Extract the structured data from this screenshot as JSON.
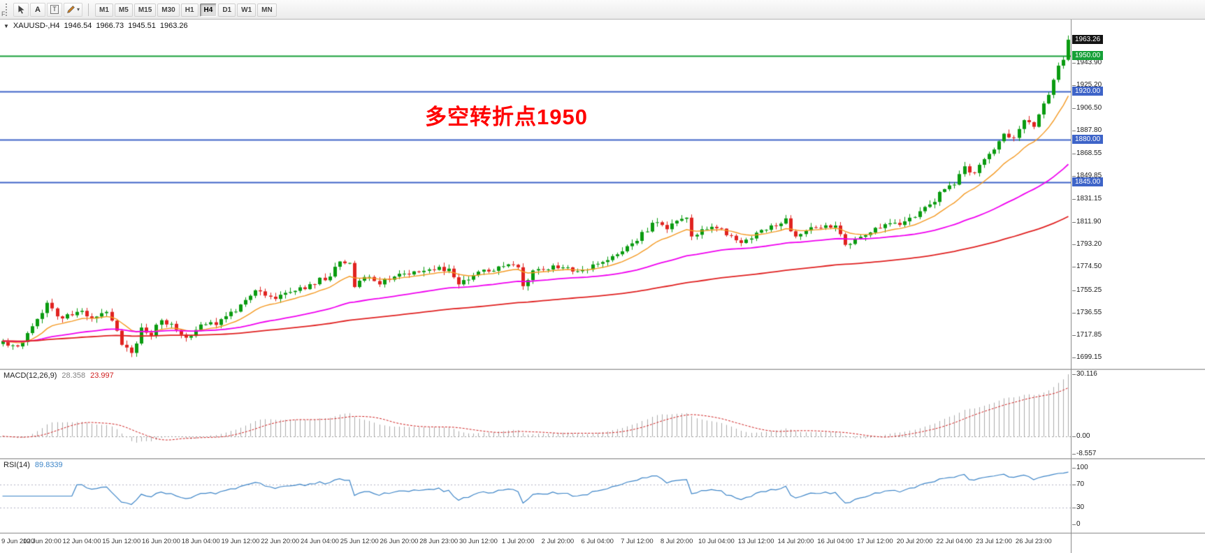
{
  "toolbar": {
    "partial_label": "F",
    "icons": [
      {
        "name": "cursor-icon"
      },
      {
        "name": "text-label-icon",
        "glyph": "A"
      },
      {
        "name": "text-box-icon",
        "glyph": "T"
      },
      {
        "name": "pencil-icon"
      },
      {
        "name": "chevron-down-icon",
        "glyph": "▾"
      }
    ],
    "timeframes": [
      {
        "label": "M1",
        "active": false
      },
      {
        "label": "M5",
        "active": false
      },
      {
        "label": "M15",
        "active": false
      },
      {
        "label": "M30",
        "active": false
      },
      {
        "label": "H1",
        "active": false
      },
      {
        "label": "H4",
        "active": true
      },
      {
        "label": "D1",
        "active": false
      },
      {
        "label": "W1",
        "active": false
      },
      {
        "label": "MN",
        "active": false
      }
    ]
  },
  "quote_header": {
    "collapse_glyph": "▼",
    "symbol_display": "XAUUSD-,H4",
    "open": "1946.54",
    "high": "1966.73",
    "low": "1945.51",
    "close": "1963.26"
  },
  "annotation": {
    "text": "多空转折点1950",
    "color": "#ff0000"
  },
  "main_chart": {
    "price_axis_ticks": [
      "1943.90",
      "1925.20",
      "1906.50",
      "1887.80",
      "1868.55",
      "1849.85",
      "1831.15",
      "1811.90",
      "1793.20",
      "1774.50",
      "1755.25",
      "1736.55",
      "1717.85",
      "1699.15"
    ],
    "badges": [
      {
        "value": "1963.26",
        "bg": "#141414",
        "type": "current-price"
      },
      {
        "value": "1950.00",
        "bg": "#16a038",
        "type": "level"
      },
      {
        "value": "1920.00",
        "bg": "#3e64c8",
        "type": "level"
      },
      {
        "value": "1880.00",
        "bg": "#3e64c8",
        "type": "level"
      },
      {
        "value": "1845.00",
        "bg": "#3e64c8",
        "type": "level"
      }
    ],
    "levels": [
      {
        "price": 1950,
        "color": "#16a038"
      },
      {
        "price": 1920,
        "color": "#3e64c8"
      },
      {
        "price": 1880,
        "color": "#3e64c8"
      },
      {
        "price": 1845,
        "color": "#3e64c8"
      }
    ],
    "up_color": "#0a9b10",
    "down_color": "#e02320",
    "price_range": {
      "top": 1980,
      "bottom": 1690
    }
  },
  "macd": {
    "title": "MACD(12,26,9)",
    "value_main": "28.358",
    "value_signal": "23.997",
    "axis_max": "30.116",
    "axis_zero": "0.00",
    "axis_min": "-8.557",
    "histogram_color": "#ababab",
    "signal_color": "#d02020"
  },
  "rsi": {
    "title": "RSI(14)",
    "value": "89.8339",
    "line_color": "#3d85c8",
    "levels": [
      70,
      30
    ],
    "axis_labels": [
      "100",
      "70",
      "30",
      "0"
    ]
  },
  "time_axis": {
    "labels": [
      "9 Jun 2020",
      "10 Jun 20:00",
      "12 Jun 04:00",
      "15 Jun 12:00",
      "16 Jun 20:00",
      "18 Jun 04:00",
      "19 Jun 12:00",
      "22 Jun 20:00",
      "24 Jun 04:00",
      "25 Jun 12:00",
      "26 Jun 20:00",
      "28 Jun 23:00",
      "30 Jun 12:00",
      "1 Jul 20:00",
      "2 Jul 20:00",
      "6 Jul 04:00",
      "7 Jul 12:00",
      "8 Jul 20:00",
      "10 Jul 04:00",
      "13 Jul 12:00",
      "14 Jul 20:00",
      "16 Jul 04:00",
      "17 Jul 12:00",
      "20 Jul 20:00",
      "22 Jul 04:00",
      "23 Jul 12:00",
      "26 Jul 23:00"
    ]
  },
  "chart_data": {
    "type": "candlestick",
    "symbol": "XAUUSD-",
    "timeframe": "H4",
    "candle_count": 216,
    "label_every_n_candles": 8,
    "last_candle": {
      "open": 1946.54,
      "high": 1966.73,
      "low": 1945.51,
      "close": 1963.26
    },
    "close_anchors": [
      [
        0,
        1713
      ],
      [
        3,
        1708
      ],
      [
        6,
        1726
      ],
      [
        9,
        1744
      ],
      [
        12,
        1731
      ],
      [
        15,
        1738
      ],
      [
        18,
        1733
      ],
      [
        21,
        1739
      ],
      [
        24,
        1712
      ],
      [
        26,
        1703
      ],
      [
        28,
        1722
      ],
      [
        30,
        1719
      ],
      [
        32,
        1731
      ],
      [
        35,
        1724
      ],
      [
        37,
        1716
      ],
      [
        40,
        1725
      ],
      [
        44,
        1729
      ],
      [
        48,
        1743
      ],
      [
        51,
        1755
      ],
      [
        54,
        1748
      ],
      [
        57,
        1753
      ],
      [
        60,
        1756
      ],
      [
        63,
        1762
      ],
      [
        66,
        1767
      ],
      [
        68,
        1779
      ],
      [
        70,
        1776
      ],
      [
        71,
        1758
      ],
      [
        73,
        1766
      ],
      [
        76,
        1762
      ],
      [
        79,
        1767
      ],
      [
        82,
        1770
      ],
      [
        85,
        1772
      ],
      [
        88,
        1774
      ],
      [
        90,
        1772
      ],
      [
        92,
        1759
      ],
      [
        95,
        1767
      ],
      [
        98,
        1772
      ],
      [
        101,
        1774
      ],
      [
        104,
        1776
      ],
      [
        105,
        1760
      ],
      [
        107,
        1771
      ],
      [
        110,
        1774
      ],
      [
        113,
        1775
      ],
      [
        116,
        1771
      ],
      [
        119,
        1775
      ],
      [
        122,
        1781
      ],
      [
        125,
        1789
      ],
      [
        128,
        1797
      ],
      [
        130,
        1806
      ],
      [
        132,
        1813
      ],
      [
        134,
        1807
      ],
      [
        136,
        1813
      ],
      [
        138,
        1816
      ],
      [
        139,
        1800
      ],
      [
        141,
        1804
      ],
      [
        144,
        1807
      ],
      [
        147,
        1800
      ],
      [
        149,
        1794
      ],
      [
        152,
        1803
      ],
      [
        155,
        1809
      ],
      [
        158,
        1813
      ],
      [
        160,
        1799
      ],
      [
        163,
        1806
      ],
      [
        166,
        1809
      ],
      [
        168,
        1807
      ],
      [
        170,
        1793
      ],
      [
        173,
        1801
      ],
      [
        176,
        1806
      ],
      [
        179,
        1809
      ],
      [
        182,
        1812
      ],
      [
        184,
        1816
      ],
      [
        187,
        1826
      ],
      [
        190,
        1839
      ],
      [
        192,
        1845
      ],
      [
        194,
        1856
      ],
      [
        196,
        1852
      ],
      [
        198,
        1863
      ],
      [
        200,
        1872
      ],
      [
        202,
        1886
      ],
      [
        204,
        1881
      ],
      [
        206,
        1897
      ],
      [
        208,
        1892
      ],
      [
        209,
        1903
      ],
      [
        210,
        1909
      ],
      [
        211,
        1918
      ],
      [
        212,
        1929
      ],
      [
        213,
        1940
      ],
      [
        214,
        1946.54
      ],
      [
        215,
        1963.26
      ]
    ],
    "moving_averages": [
      {
        "period": 13,
        "color": "#f59a23"
      },
      {
        "period": 55,
        "color": "#f000f0"
      },
      {
        "period": 144,
        "color": "#e02020"
      }
    ],
    "macd_periods": [
      12,
      26,
      9
    ],
    "macd_display": {
      "max": 30.116,
      "min": -8.557
    },
    "rsi_period": 14,
    "horizontal_levels": [
      1950,
      1920,
      1880,
      1845
    ],
    "ylim": [
      1690,
      1980
    ]
  }
}
